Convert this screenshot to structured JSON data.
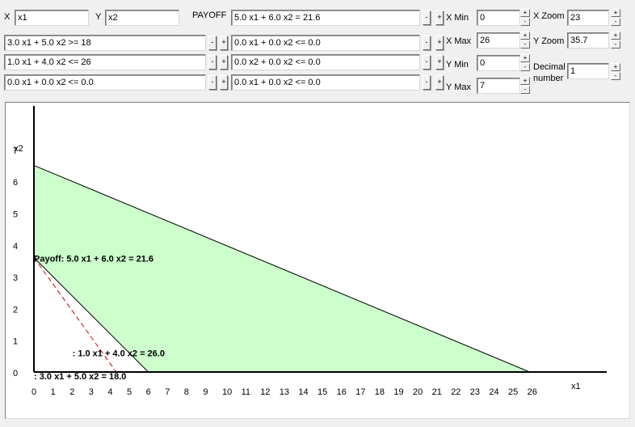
{
  "variables": {
    "x_label": "X",
    "x_value": "x1",
    "y_label": "Y",
    "y_value": "x2"
  },
  "payoff": {
    "label": "PAYOFF",
    "value": "5.0 x1 +  6.0 x2 = 21.6"
  },
  "constraints_left": [
    "3.0 x1 +  5.0 x2 >= 18",
    " 1.0 x1 +  4.0 x2 <= 26",
    "0.0 x1 +  0.0 x2 <=  0.0"
  ],
  "constraints_right": [
    "0.0 x1 +  0.0 x2 <=  0.0",
    "0.0 x2 +  0.0 x2 <=  0.0",
    "0.0 x1 +  0.0 x2 <=  0.0"
  ],
  "buttons": {
    "minus": "-",
    "plus": "+"
  },
  "range": {
    "xmin_label": "X Min",
    "xmin_value": "0",
    "xmax_label": "X Max",
    "xmax_value": "26",
    "ymin_label": "Y Min",
    "ymin_value": "0",
    "ymax_label": "Y Max",
    "ymax_value": "7"
  },
  "zoom": {
    "xzoom_label": "X Zoom",
    "xzoom_value": "23",
    "yzoom_label": "Y Zoom",
    "yzoom_value": "35.7",
    "decimal_label_1": "Decimal",
    "decimal_label_2": "number",
    "decimal_value": "1"
  },
  "chart_data": {
    "type": "line",
    "xlabel": "x1",
    "ylabel": "x2",
    "xlim": [
      0,
      26
    ],
    "ylim": [
      0,
      7
    ],
    "x_ticks": [
      "0",
      "1",
      "2",
      "3",
      "4",
      "5",
      "6",
      "7",
      "8",
      "9",
      "10",
      "11",
      "12",
      "13",
      "14",
      "15",
      "16",
      "17",
      "18",
      "19",
      "20",
      "21",
      "22",
      "23",
      "24",
      "25",
      "26"
    ],
    "y_ticks": [
      "0",
      "1",
      "2",
      "3",
      "4",
      "5",
      "6",
      "7"
    ],
    "feasible_region": [
      [
        0,
        3.6
      ],
      [
        0,
        6.5
      ],
      [
        26,
        0
      ],
      [
        6,
        0
      ]
    ],
    "feasible_color": "#ccffcc",
    "constraint_lines": [
      {
        "points": [
          [
            0,
            3.6
          ],
          [
            6,
            0
          ]
        ]
      },
      {
        "points": [
          [
            0,
            6.5
          ],
          [
            26,
            0
          ]
        ]
      }
    ],
    "payoff_line": {
      "points": [
        [
          0,
          3.6
        ],
        [
          4.32,
          0
        ]
      ],
      "color": "#cc0000"
    },
    "annotations": [
      {
        "text": "Payoff:   5.0 x1 +   6.0 x2 =  21.6",
        "x": 0,
        "y": 3.6
      },
      {
        "text": ":   1.0 x1 +   4.0 x2 =  26.0",
        "x": 1.0,
        "y": 0.62
      },
      {
        "text": ":   3.0 x1 +   5.0 x2 =  18.0",
        "x": 0,
        "y": 0.0
      }
    ]
  }
}
